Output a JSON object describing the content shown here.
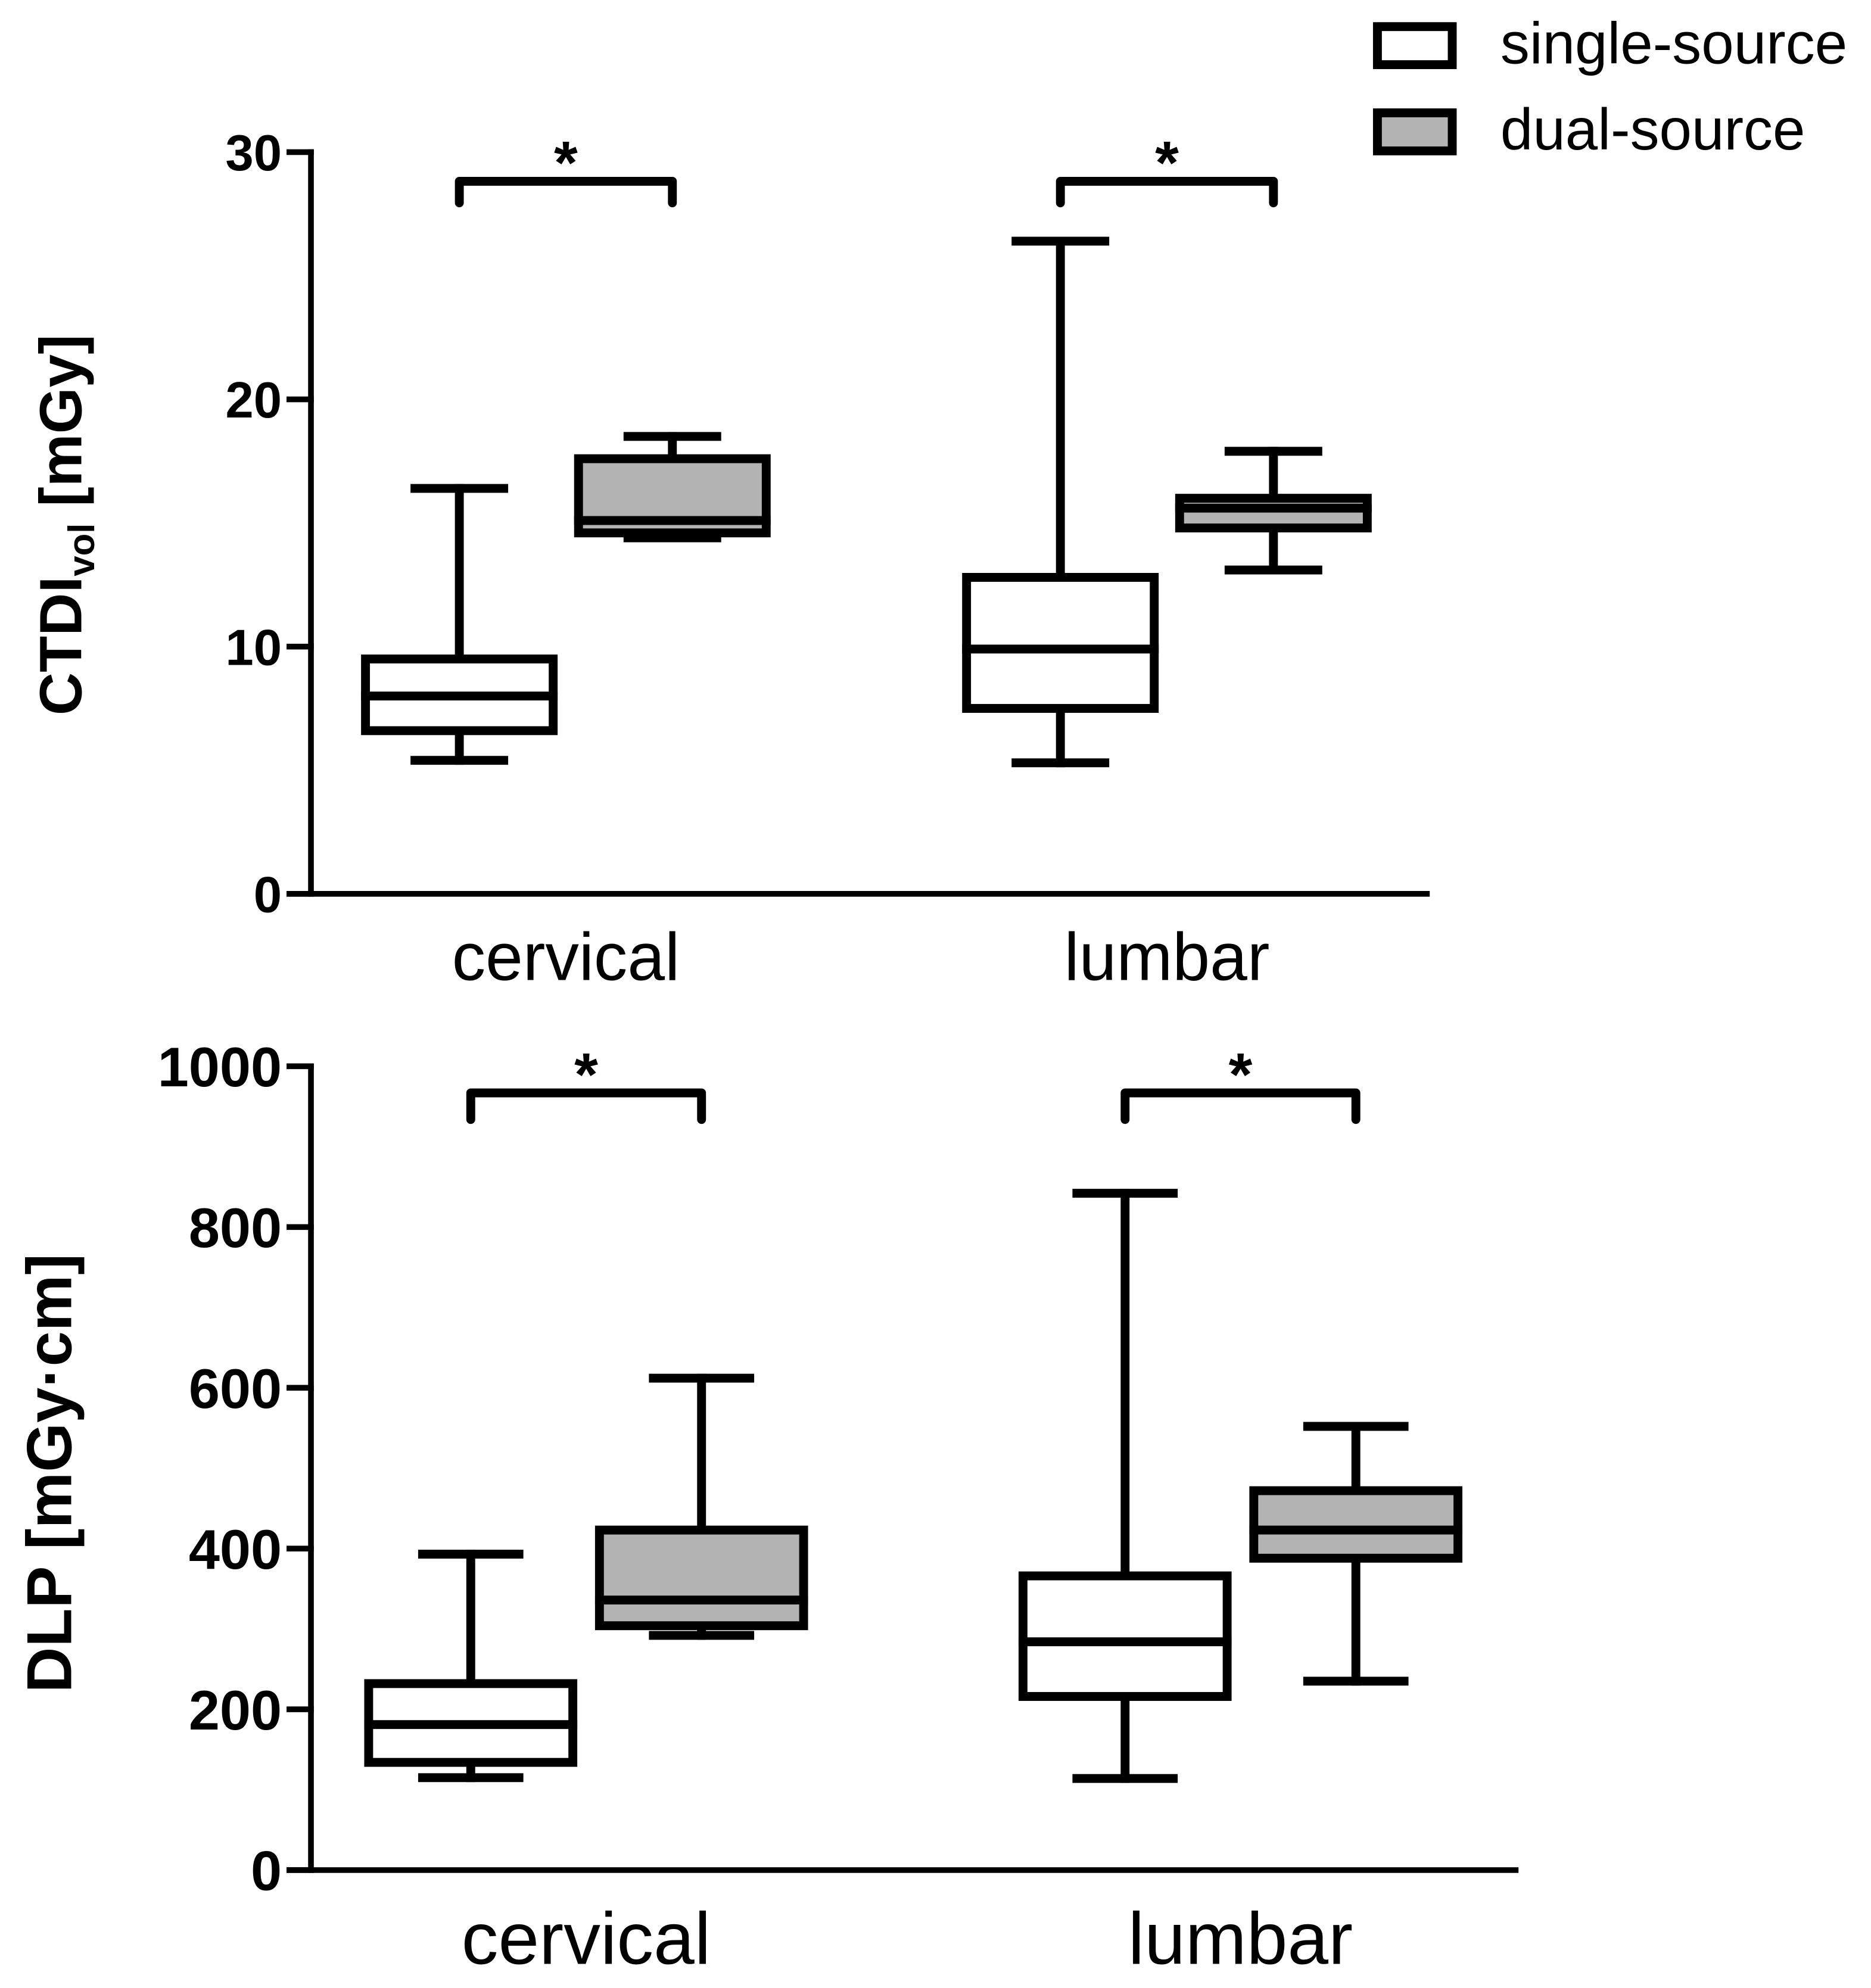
{
  "chart_data": [
    {
      "type": "box",
      "ylabel": {
        "main": "CTDI",
        "sub": "vol",
        "unit": " [mGy]"
      },
      "ylim": [
        0,
        30
      ],
      "yticks": [
        0,
        10,
        20,
        30
      ],
      "grid": false,
      "legend": {
        "placement": "top-right"
      },
      "categories": [
        "cervical",
        "lumbar"
      ],
      "series": [
        {
          "name": "single-source",
          "color": "#ffffff",
          "boxes": [
            {
              "min": 5.4,
              "q1": 6.6,
              "median": 8.0,
              "q3": 9.5,
              "max": 16.4
            },
            {
              "min": 5.3,
              "q1": 7.5,
              "median": 9.9,
              "q3": 12.8,
              "max": 26.4
            }
          ]
        },
        {
          "name": "dual-source",
          "color": "#b3b3b3",
          "boxes": [
            {
              "min": 14.4,
              "q1": 14.6,
              "median": 15.1,
              "q3": 17.6,
              "max": 18.5
            },
            {
              "min": 13.1,
              "q1": 14.8,
              "median": 15.6,
              "q3": 16.0,
              "max": 17.9
            }
          ]
        }
      ],
      "significance": [
        {
          "category": 0,
          "label": "*"
        },
        {
          "category": 1,
          "label": "*"
        }
      ]
    },
    {
      "type": "box",
      "ylabel": {
        "main": "DLP [mGy·cm]"
      },
      "ylim": [
        0,
        1000
      ],
      "yticks": [
        0,
        200,
        400,
        600,
        800,
        1000
      ],
      "grid": false,
      "categories": [
        "cervical",
        "lumbar"
      ],
      "series": [
        {
          "color": "#ffffff",
          "boxes": [
            {
              "min": 115,
              "q1": 134,
              "median": 181,
              "q3": 232,
              "max": 393
            },
            {
              "min": 114,
              "q1": 216,
              "median": 284,
              "q3": 366,
              "max": 842
            }
          ]
        },
        {
          "color": "#b3b3b3",
          "boxes": [
            {
              "min": 292,
              "q1": 304,
              "median": 336,
              "q3": 423,
              "max": 612
            },
            {
              "min": 235,
              "q1": 388,
              "median": 423,
              "q3": 472,
              "max": 552
            }
          ]
        }
      ],
      "significance": [
        {
          "category": 0,
          "label": "*"
        },
        {
          "category": 1,
          "label": "*"
        }
      ]
    }
  ]
}
